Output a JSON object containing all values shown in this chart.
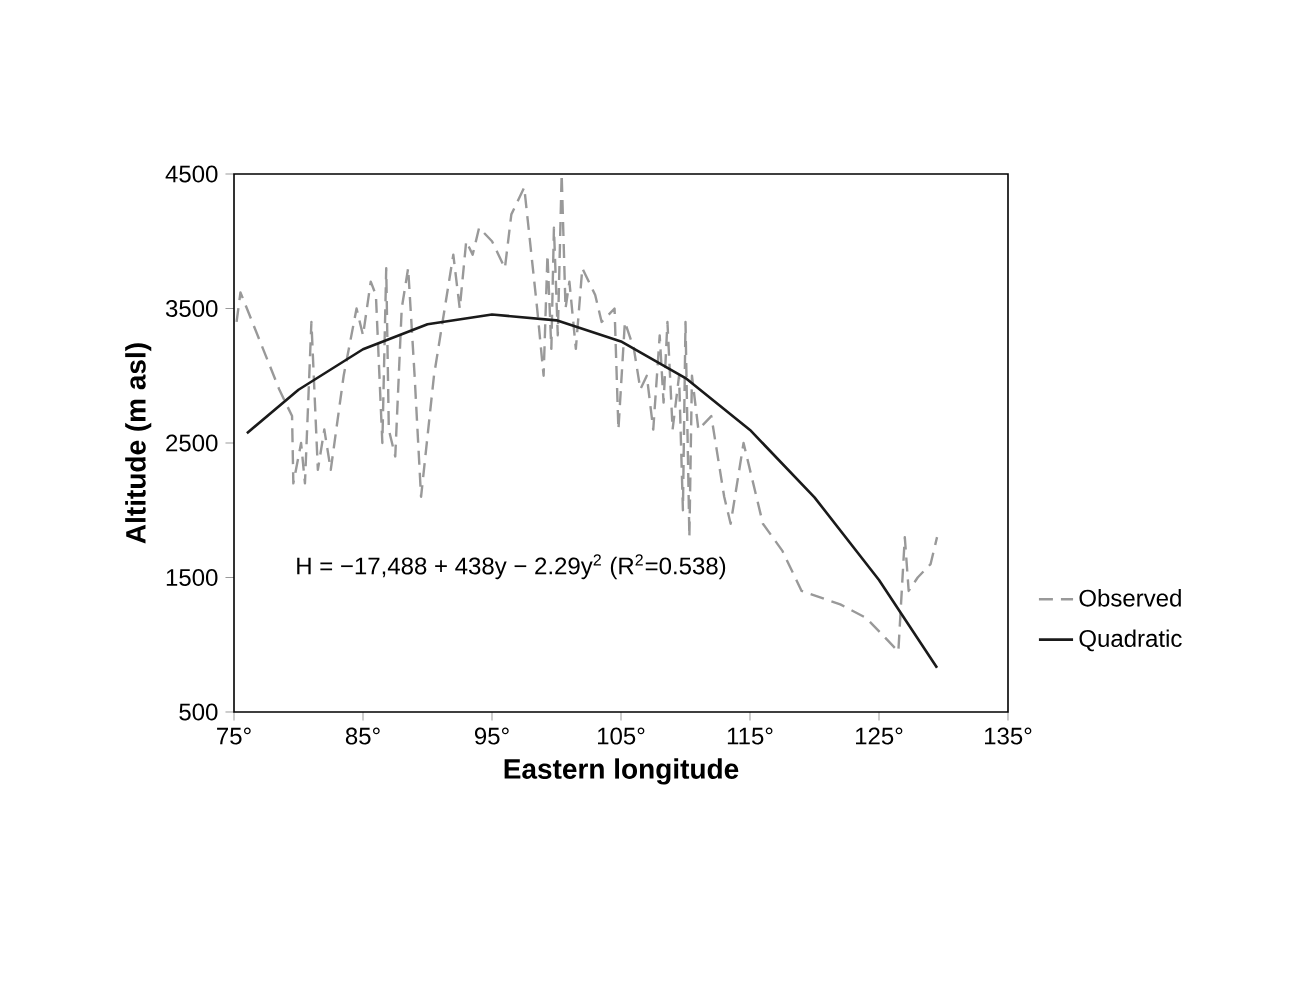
{
  "chart_data": {
    "type": "line",
    "xlabel": "Eastern longitude",
    "ylabel": "Altitude (m asl)",
    "xlim": [
      75,
      135
    ],
    "ylim": [
      500,
      4500
    ],
    "xticks": [
      {
        "value": 75,
        "label": "75°"
      },
      {
        "value": 85,
        "label": "85°"
      },
      {
        "value": 95,
        "label": "95°"
      },
      {
        "value": 105,
        "label": "105°"
      },
      {
        "value": 115,
        "label": "115°"
      },
      {
        "value": 125,
        "label": "125°"
      },
      {
        "value": 135,
        "label": "135°"
      }
    ],
    "yticks": [
      500,
      1500,
      2500,
      3500,
      4500
    ],
    "legend": "right",
    "grid": false,
    "marker": "none",
    "annotations": [
      "H = −17,488 + 438y − 2.29y$^{2}$  (R$^{2}$=0.538)"
    ],
    "series": [
      {
        "name": "Observed",
        "color": "#999999",
        "line_style": "dashed",
        "x": [
          75.2,
          75.5,
          78.5,
          79.5,
          79.6,
          80.2,
          80.5,
          81,
          81.5,
          82,
          82.5,
          83.5,
          84.5,
          85,
          85.6,
          86,
          86.5,
          86.8,
          87,
          87.5,
          88,
          88.5,
          89,
          89.5,
          90.5,
          91.5,
          92,
          92.5,
          93,
          93.5,
          94,
          95,
          96,
          96.5,
          97.5,
          98.5,
          99,
          99.3,
          99.6,
          99.8,
          100.1,
          100.4,
          100.7,
          101,
          101.5,
          102,
          103,
          103.5,
          104.5,
          104.8,
          105.3,
          106,
          106.5,
          107,
          107.5,
          108,
          108.3,
          108.6,
          109,
          109.5,
          109.8,
          110,
          110.3,
          110.5,
          111,
          112,
          113,
          113.5,
          114.5,
          116,
          117.5,
          119,
          122,
          124,
          126.5,
          127,
          127.3,
          128,
          129,
          129.5
        ],
        "values": [
          3400,
          3620,
          2900,
          2700,
          2200,
          2500,
          2200,
          3400,
          2300,
          2600,
          2300,
          3000,
          3500,
          3300,
          3700,
          3600,
          2500,
          3800,
          2600,
          2400,
          3500,
          3800,
          3000,
          2100,
          3000,
          3600,
          3900,
          3500,
          4000,
          3900,
          4100,
          4000,
          3800,
          4200,
          4400,
          3500,
          3000,
          3900,
          3200,
          4100,
          3300,
          4500,
          3500,
          3700,
          3200,
          3800,
          3600,
          3400,
          3500,
          2600,
          3400,
          3200,
          2900,
          3000,
          2600,
          3300,
          2800,
          3400,
          2600,
          3000,
          2000,
          3400,
          1800,
          3000,
          2600,
          2700,
          2100,
          1900,
          2500,
          1900,
          1700,
          1400,
          1300,
          1200,
          950,
          1800,
          1400,
          1500,
          1600,
          1800
        ]
      },
      {
        "name": "Quadratic",
        "color": "#1a1a1a",
        "line_style": "solid",
        "x": [
          76,
          80,
          85,
          90,
          95,
          100,
          105,
          110,
          115,
          120,
          125,
          129.5
        ],
        "values": [
          2573,
          2896,
          3197,
          3383,
          3455,
          3412,
          3255,
          2983,
          2597,
          2096,
          1481,
          829
        ]
      }
    ]
  }
}
